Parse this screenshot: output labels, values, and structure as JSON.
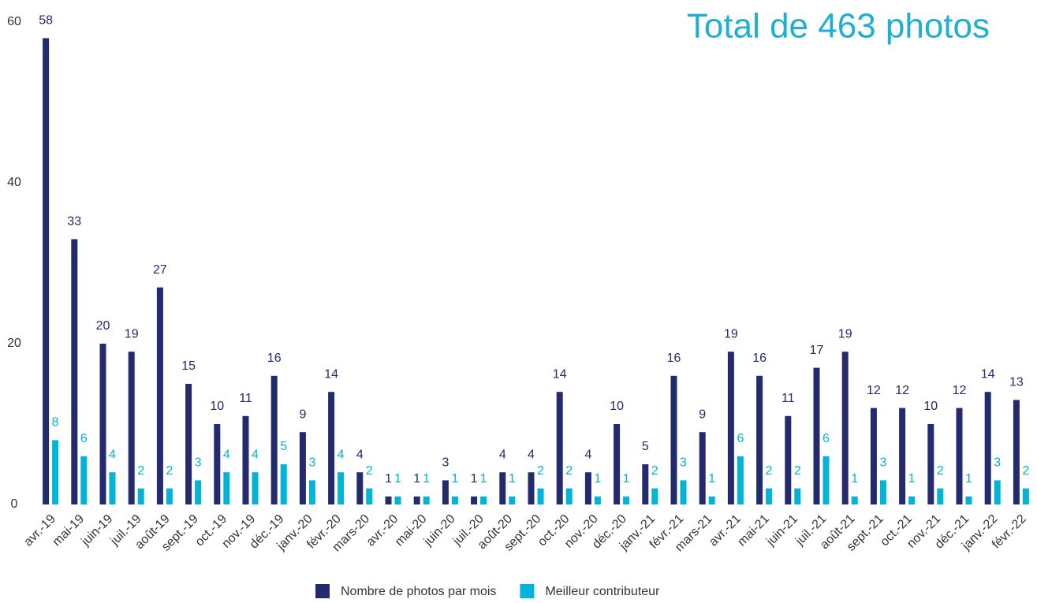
{
  "chart_data": {
    "type": "bar",
    "title": "Total de 463 photos",
    "categories": [
      "avr.-19",
      "mai-19",
      "juin-19",
      "juil.-19",
      "août-19",
      "sept.-19",
      "oct.-19",
      "nov.-19",
      "déc.-19",
      "janv.-20",
      "févr.-20",
      "mars-20",
      "avr.-20",
      "mai-20",
      "juin-20",
      "juil.-20",
      "août-20",
      "sept.-20",
      "oct.-20",
      "nov.-20",
      "déc.-20",
      "janv.-21",
      "févr.-21",
      "mars-21",
      "avr.-21",
      "mai-21",
      "juin-21",
      "juil.-21",
      "août-21",
      "sept.-21",
      "oct.-21",
      "nov.-21",
      "déc.-21",
      "janv.-22",
      "févr.-22"
    ],
    "series": [
      {
        "name": "Nombre de photos par mois",
        "color": "#232a6e",
        "values": [
          58,
          33,
          20,
          19,
          27,
          15,
          10,
          11,
          16,
          9,
          14,
          4,
          1,
          1,
          3,
          1,
          4,
          4,
          14,
          4,
          10,
          5,
          16,
          9,
          19,
          16,
          11,
          17,
          19,
          12,
          12,
          10,
          12,
          14,
          13
        ]
      },
      {
        "name": "Meilleur contributeur",
        "color": "#00b4d8",
        "values": [
          8,
          6,
          4,
          2,
          2,
          3,
          4,
          4,
          5,
          3,
          4,
          2,
          1,
          1,
          1,
          1,
          1,
          2,
          2,
          1,
          1,
          2,
          3,
          1,
          6,
          2,
          2,
          6,
          1,
          3,
          1,
          2,
          1,
          3,
          2
        ]
      }
    ],
    "ylim": [
      0,
      60
    ],
    "yticks": [
      0,
      20,
      40,
      60
    ],
    "grid": false,
    "legend": "bottom"
  }
}
